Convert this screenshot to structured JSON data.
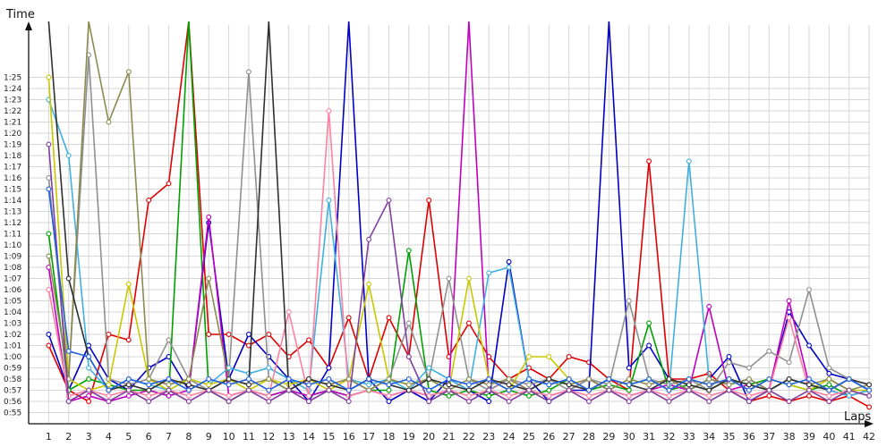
{
  "chart_data": {
    "type": "line",
    "xlabel": "Laps",
    "ylabel": "Time",
    "x_ticks": [
      1,
      2,
      3,
      4,
      5,
      6,
      7,
      8,
      9,
      10,
      11,
      12,
      13,
      14,
      15,
      16,
      17,
      18,
      19,
      20,
      21,
      22,
      23,
      24,
      25,
      26,
      27,
      28,
      29,
      30,
      31,
      32,
      33,
      34,
      35,
      36,
      37,
      38,
      39,
      40,
      41,
      42
    ],
    "y_ticks": [
      "0:55",
      "0:56",
      "0:57",
      "0:58",
      "0:59",
      "1:00",
      "1:01",
      "1:02",
      "1:03",
      "1:04",
      "1:05",
      "1:06",
      "1:07",
      "1:08",
      "1:09",
      "1:10",
      "1:11",
      "1:12",
      "1:13",
      "1:14",
      "1:15",
      "1:16",
      "1:17",
      "1:18",
      "1:19",
      "1:20",
      "1:21",
      "1:22",
      "1:23",
      "1:24",
      "1:25"
    ],
    "y_unit": "seconds",
    "ylim": [
      54,
      90
    ],
    "xlim": [
      0,
      42.4
    ],
    "grid": true,
    "legend": false,
    "series": [
      {
        "color": "#e00000",
        "values": [
          61,
          57,
          56,
          62,
          61.5,
          74,
          75.5,
          90,
          62,
          62,
          61,
          62,
          60,
          61.5,
          59,
          63.5,
          58,
          63.5,
          60,
          74,
          60,
          63,
          60,
          58,
          59,
          58,
          60,
          59.5,
          58,
          57,
          77.5,
          58,
          58,
          58.5,
          57,
          56,
          56.5,
          56,
          56.5,
          56,
          56.5,
          55.5
        ]
      },
      {
        "color": "#0000c8",
        "values": [
          62,
          57,
          61,
          58,
          57,
          59,
          60,
          57,
          72,
          58,
          62,
          60,
          58,
          56,
          59,
          90,
          58,
          56,
          57,
          56,
          58,
          57,
          56,
          68.5,
          58,
          56,
          57,
          57,
          90,
          59,
          61,
          58,
          57,
          58,
          60,
          56,
          57,
          64,
          61,
          58.5,
          58,
          57
        ]
      },
      {
        "color": "#00a000",
        "values": [
          71,
          57,
          58,
          57.5,
          57,
          57,
          56.5,
          90,
          57,
          56,
          57,
          56.5,
          57,
          56.5,
          57,
          56.5,
          57,
          57,
          69.5,
          57,
          56.5,
          57,
          56.5,
          57,
          56.5,
          57,
          58,
          57,
          57.5,
          57,
          63,
          57,
          57.5,
          57,
          58,
          57.5,
          58,
          57.5,
          57,
          57.5,
          56.5,
          57
        ]
      },
      {
        "color": "#c000c0",
        "values": [
          68,
          56,
          56.5,
          56,
          56.5,
          57,
          56.5,
          57,
          72.5,
          56.5,
          57,
          56.5,
          57,
          56.5,
          57,
          56.5,
          57,
          56.5,
          57,
          56.5,
          57,
          90,
          57,
          58,
          57,
          56.5,
          57,
          58,
          57,
          56.5,
          57,
          57.5,
          57,
          64.5,
          57,
          57.5,
          57,
          65,
          57.5,
          57,
          56.5,
          57
        ]
      },
      {
        "color": "#909090",
        "values": [
          76,
          58,
          87,
          58,
          57.5,
          58,
          61.5,
          58,
          57,
          58,
          85.5,
          58,
          57,
          58,
          57.5,
          58,
          57,
          58,
          63,
          58,
          67,
          58,
          57,
          58,
          57.5,
          58,
          57,
          58,
          57.5,
          65,
          58,
          57.5,
          58,
          57,
          59.5,
          59,
          60.5,
          59.5,
          66,
          59,
          58,
          57.5
        ]
      },
      {
        "color": "#40b0e0",
        "values": [
          83,
          78,
          59,
          57,
          58,
          57.5,
          57,
          58,
          57.5,
          59,
          58.5,
          59,
          58,
          57,
          74,
          58,
          57.5,
          58,
          57,
          59,
          58,
          57,
          67.5,
          68,
          58,
          57.5,
          58,
          57,
          58,
          57.5,
          58,
          57,
          77.5,
          58,
          57.5,
          58,
          57,
          58,
          57.5,
          57,
          56.5,
          57
        ]
      },
      {
        "color": "#c8c800",
        "values": [
          85,
          58,
          57,
          57.5,
          66.5,
          58,
          57,
          58,
          57.5,
          58,
          57,
          58,
          57.5,
          58,
          57,
          58,
          66.5,
          58,
          57.5,
          58,
          57,
          67,
          58,
          57,
          60,
          60,
          58,
          57,
          58,
          57.5,
          58,
          57,
          58,
          57.5,
          58,
          57,
          58,
          57.5,
          57,
          58,
          57,
          57
        ]
      },
      {
        "color": "#ff80a0",
        "values": [
          66,
          56.5,
          57,
          56.5,
          57,
          56.5,
          57,
          56.5,
          57,
          56.5,
          57,
          56.5,
          64,
          56.5,
          82,
          56.5,
          57,
          56.5,
          57,
          56.5,
          57,
          56.5,
          57,
          56.5,
          57,
          56.5,
          57,
          56.5,
          57,
          56.5,
          57,
          56.5,
          57,
          56.5,
          57,
          56.5,
          57,
          63.5,
          57,
          56.5,
          57,
          56.5
        ]
      },
      {
        "color": "#8b8b50",
        "values": [
          69,
          58,
          90,
          81,
          85.5,
          58,
          57.5,
          58,
          67,
          58,
          57.5,
          58,
          57,
          58,
          57.5,
          58,
          57,
          58,
          57.5,
          58,
          57,
          58,
          57.5,
          58,
          57,
          58,
          57.5,
          58,
          57,
          58,
          57.5,
          58,
          57,
          58,
          57.5,
          58,
          57,
          58,
          57.5,
          58,
          57,
          57.5
        ]
      },
      {
        "color": "#303030",
        "values": [
          90,
          67,
          60,
          57,
          57.5,
          57,
          58,
          57.5,
          57,
          58,
          57.5,
          90,
          57,
          58,
          57.5,
          57,
          58,
          57.5,
          57,
          58,
          57.5,
          57,
          58,
          57.5,
          57,
          58,
          57.5,
          57,
          58,
          57.5,
          57,
          58,
          57.5,
          57,
          58,
          57.5,
          57,
          58,
          57.5,
          57,
          58,
          57.5
        ]
      },
      {
        "color": "#8040a0",
        "values": [
          79,
          56,
          57,
          56,
          57,
          56,
          57,
          56,
          57,
          56,
          57,
          56,
          57,
          56,
          57,
          56,
          70.5,
          74,
          60,
          56,
          57,
          56,
          57,
          56,
          57,
          56,
          57,
          56,
          57,
          56,
          57,
          56,
          57,
          56,
          57,
          56,
          57,
          56,
          57,
          56,
          57,
          56.5
        ]
      },
      {
        "color": "#2060e0",
        "values": [
          75,
          60.5,
          60,
          57,
          58,
          57.5,
          58,
          57,
          58,
          57.5,
          58,
          57,
          58,
          57.5,
          58,
          57,
          58,
          57.5,
          58,
          57,
          58,
          57.5,
          58,
          57,
          58,
          57.5,
          58,
          57,
          58,
          57.5,
          58,
          57,
          58,
          57.5,
          58,
          57,
          58,
          57.5,
          58,
          57,
          58,
          57
        ]
      }
    ]
  }
}
